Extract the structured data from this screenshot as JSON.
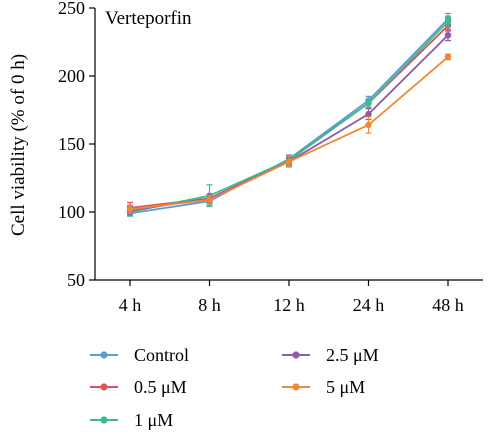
{
  "chart_data": {
    "type": "line",
    "title": "Verteporfin",
    "xlabel": "",
    "ylabel": "Cell viability (% of 0 h)",
    "categories": [
      "4 h",
      "8 h",
      "12 h",
      "24 h",
      "48 h"
    ],
    "ylim": [
      50,
      250
    ],
    "yticks": [
      50,
      100,
      150,
      200,
      250
    ],
    "grid": false,
    "legend_position": "bottom",
    "series": [
      {
        "name": "Control",
        "color": "#5b9bd5",
        "values": [
          99,
          108,
          139,
          182,
          242
        ],
        "errors": [
          2,
          3,
          3,
          3,
          4
        ]
      },
      {
        "name": "0.5 μM",
        "color": "#e0505a",
        "values": [
          103,
          110,
          138,
          180,
          237
        ],
        "errors": [
          4,
          3,
          3,
          3,
          4
        ]
      },
      {
        "name": "1 μM",
        "color": "#3dbb8c",
        "values": [
          100,
          112,
          138,
          180,
          240
        ],
        "errors": [
          3,
          8,
          3,
          3,
          4
        ]
      },
      {
        "name": "2.5 μM",
        "color": "#8e5ca8",
        "values": [
          101,
          110,
          137,
          172,
          230
        ],
        "errors": [
          3,
          3,
          3,
          4,
          4
        ]
      },
      {
        "name": "5 μM",
        "color": "#ee8a35",
        "values": [
          102,
          109,
          137,
          164,
          214
        ],
        "errors": [
          3,
          3,
          4,
          6,
          2
        ]
      }
    ]
  }
}
